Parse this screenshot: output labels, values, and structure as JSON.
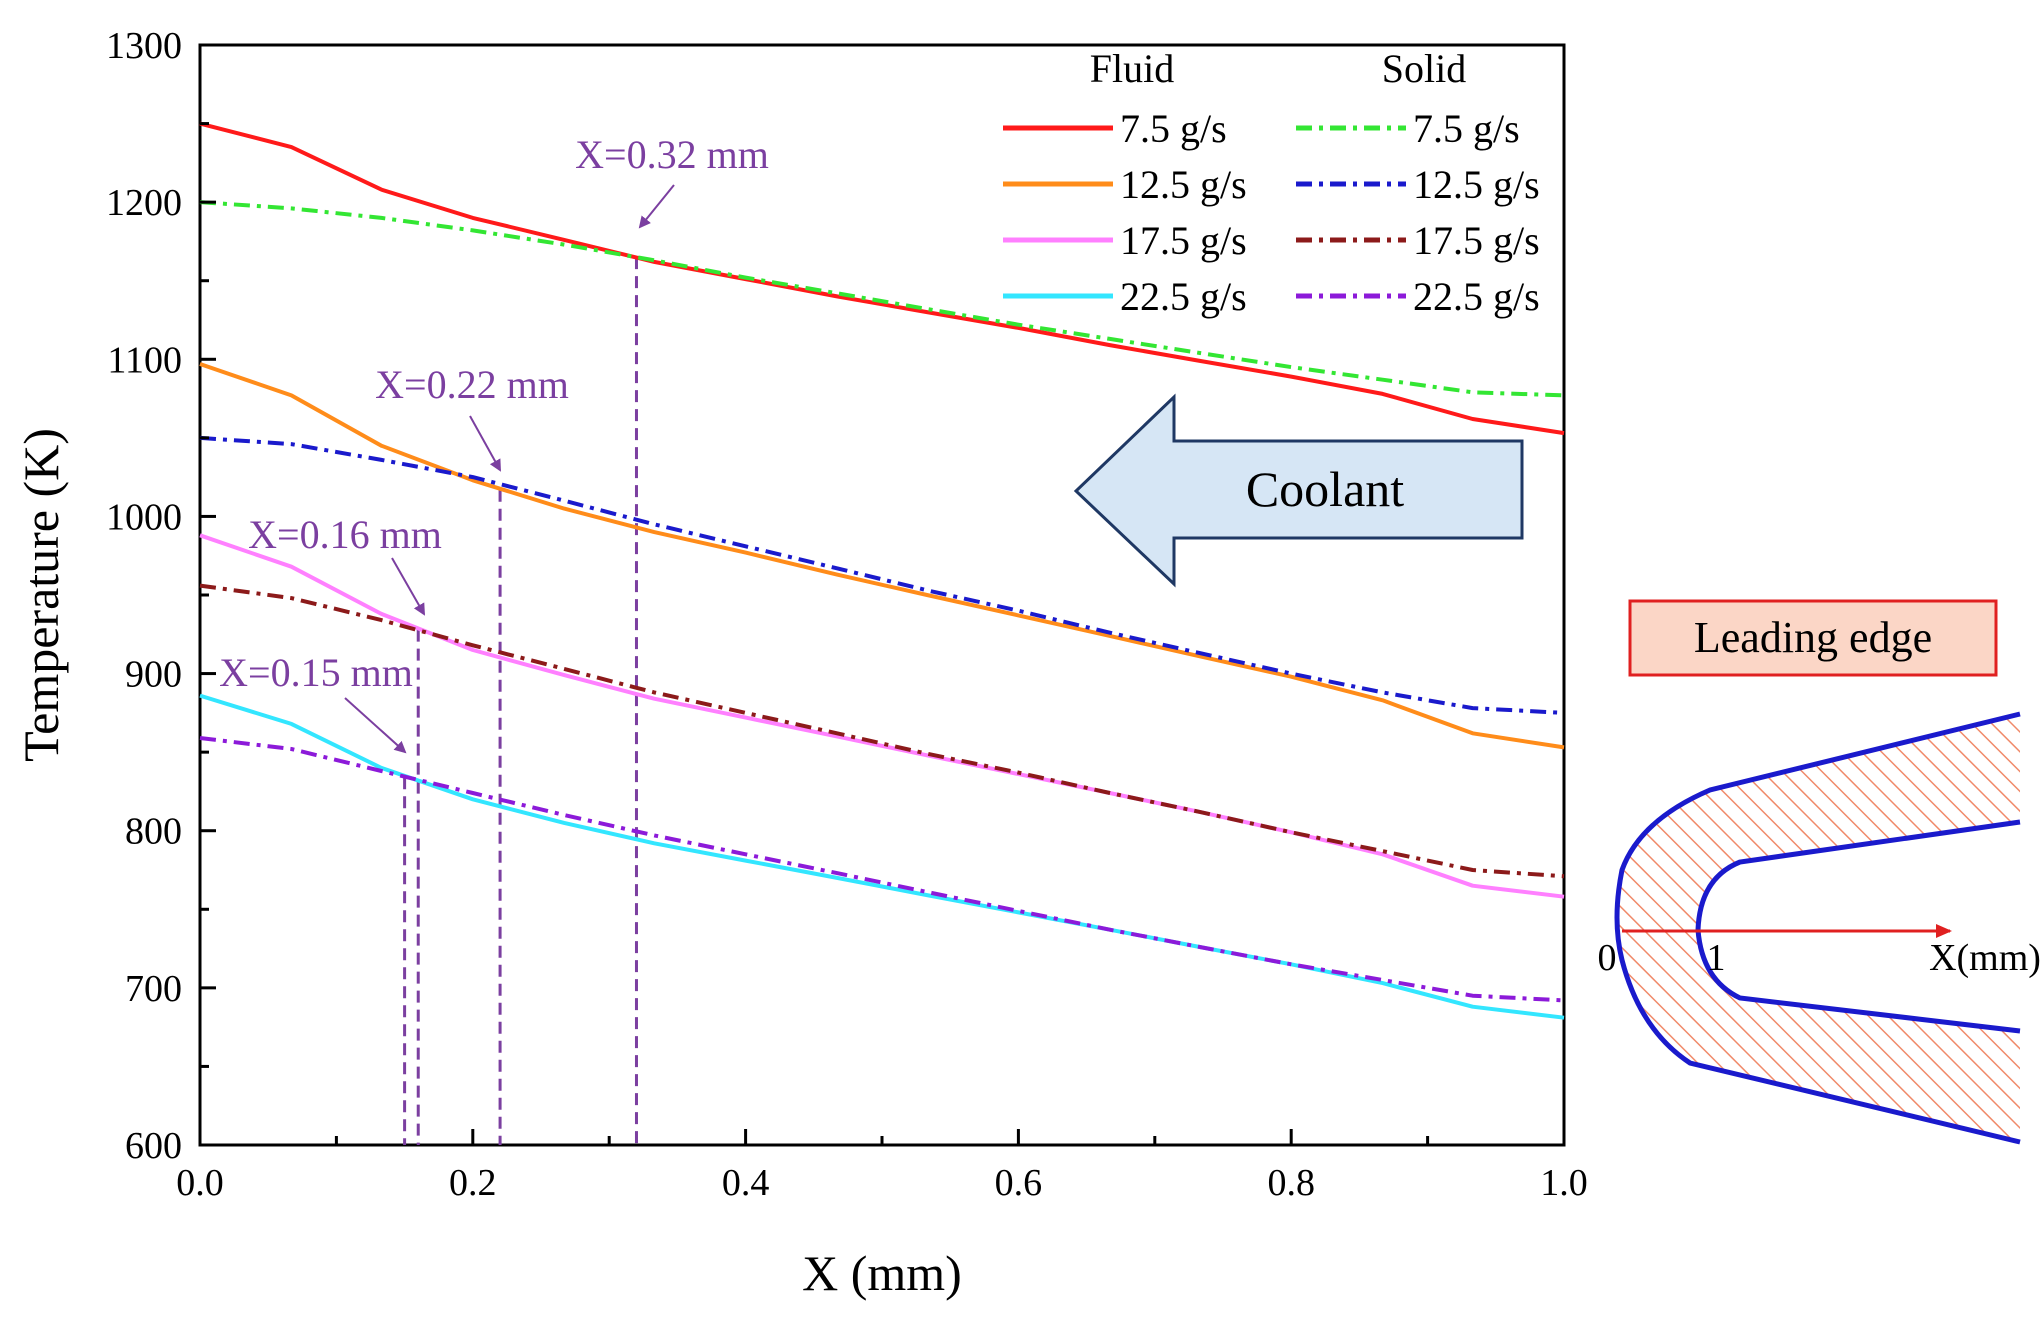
{
  "chart_data": {
    "type": "line",
    "xlabel": "X (mm)",
    "ylabel": "Temperature (K)",
    "xlim": [
      0.0,
      1.0
    ],
    "ylim": [
      600,
      1300
    ],
    "x_ticks": [
      "0.0",
      "0.2",
      "0.4",
      "0.6",
      "0.8",
      "1.0"
    ],
    "y_ticks": [
      "600",
      "700",
      "800",
      "900",
      "1000",
      "1100",
      "1200",
      "1300"
    ],
    "legend": {
      "position": "top-right",
      "col_titles": [
        "Fluid",
        "Solid"
      ]
    },
    "series": [
      {
        "name": "7.5 g/s",
        "group": "Fluid",
        "style": "solid",
        "color": "#ff1a1a",
        "x": [
          0,
          0.067,
          0.133,
          0.2,
          0.267,
          0.333,
          0.4,
          0.467,
          0.533,
          0.6,
          0.667,
          0.733,
          0.8,
          0.867,
          0.933,
          1.0
        ],
        "y": [
          1250,
          1235,
          1208,
          1190,
          1176,
          1162,
          1151,
          1140,
          1130,
          1120,
          1109,
          1099,
          1089,
          1078,
          1062,
          1053
        ]
      },
      {
        "name": "12.5 g/s",
        "group": "Fluid",
        "style": "solid",
        "color": "#ff8c1a",
        "x": [
          0,
          0.067,
          0.133,
          0.2,
          0.267,
          0.333,
          0.4,
          0.467,
          0.533,
          0.6,
          0.667,
          0.733,
          0.8,
          0.867,
          0.933,
          1.0
        ],
        "y": [
          1097,
          1077,
          1045,
          1023,
          1005,
          990,
          977,
          963,
          950,
          937,
          924,
          911,
          898,
          883,
          862,
          853
        ]
      },
      {
        "name": "17.5 g/s",
        "group": "Fluid",
        "style": "solid",
        "color": "#ff80ff",
        "x": [
          0,
          0.067,
          0.133,
          0.2,
          0.267,
          0.333,
          0.4,
          0.467,
          0.533,
          0.6,
          0.667,
          0.733,
          0.8,
          0.867,
          0.933,
          1.0
        ],
        "y": [
          988,
          968,
          938,
          915,
          899,
          884,
          872,
          860,
          848,
          836,
          824,
          812,
          799,
          785,
          765,
          758
        ]
      },
      {
        "name": "22.5 g/s",
        "group": "Fluid",
        "style": "solid",
        "color": "#33e6ff",
        "x": [
          0,
          0.067,
          0.133,
          0.2,
          0.267,
          0.333,
          0.4,
          0.467,
          0.533,
          0.6,
          0.667,
          0.733,
          0.8,
          0.867,
          0.933,
          1.0
        ],
        "y": [
          886,
          868,
          840,
          820,
          805,
          792,
          781,
          770,
          759,
          748,
          737,
          726,
          715,
          703,
          688,
          681
        ]
      },
      {
        "name": "7.5 g/s",
        "group": "Solid",
        "style": "dashdot",
        "color": "#33e633",
        "x": [
          0,
          0.067,
          0.133,
          0.2,
          0.267,
          0.333,
          0.4,
          0.467,
          0.533,
          0.6,
          0.667,
          0.733,
          0.8,
          0.867,
          0.933,
          1.0
        ],
        "y": [
          1200,
          1196,
          1190,
          1182,
          1173,
          1163,
          1152,
          1142,
          1132,
          1122,
          1113,
          1104,
          1095,
          1087,
          1079,
          1077
        ]
      },
      {
        "name": "12.5 g/s",
        "group": "Solid",
        "style": "dashdot",
        "color": "#1a1acc",
        "x": [
          0,
          0.067,
          0.133,
          0.2,
          0.267,
          0.333,
          0.4,
          0.467,
          0.533,
          0.6,
          0.667,
          0.733,
          0.8,
          0.867,
          0.933,
          1.0
        ],
        "y": [
          1050,
          1046,
          1036,
          1025,
          1010,
          995,
          981,
          967,
          953,
          940,
          926,
          913,
          900,
          888,
          878,
          875
        ]
      },
      {
        "name": "17.5 g/s",
        "group": "Solid",
        "style": "dashdot",
        "color": "#8c1a1a",
        "x": [
          0,
          0.067,
          0.133,
          0.2,
          0.267,
          0.333,
          0.4,
          0.467,
          0.533,
          0.6,
          0.667,
          0.733,
          0.8,
          0.867,
          0.933,
          1.0
        ],
        "y": [
          956,
          948,
          934,
          918,
          903,
          888,
          875,
          862,
          849,
          837,
          824,
          812,
          799,
          787,
          775,
          771
        ]
      },
      {
        "name": "22.5 g/s",
        "group": "Solid",
        "style": "dashdot",
        "color": "#8c1ad9",
        "x": [
          0,
          0.067,
          0.133,
          0.2,
          0.267,
          0.333,
          0.4,
          0.467,
          0.533,
          0.6,
          0.667,
          0.733,
          0.8,
          0.867,
          0.933,
          1.0
        ],
        "y": [
          859,
          852,
          838,
          824,
          810,
          797,
          785,
          773,
          761,
          749,
          737,
          726,
          715,
          705,
          695,
          692
        ]
      }
    ],
    "intersections": [
      {
        "label": "X=0.32 mm",
        "x": 0.32,
        "y": 1165
      },
      {
        "label": "X=0.22 mm",
        "x": 0.22,
        "y": 1017
      },
      {
        "label": "X=0.16 mm",
        "x": 0.16,
        "y": 928
      },
      {
        "label": "X=0.15 mm",
        "x": 0.15,
        "y": 834
      }
    ],
    "annotation_color": "#7b3fa0",
    "coolant_arrow": {
      "label": "Coolant",
      "fill": "#d6e6f5",
      "stroke": "#1f3864"
    },
    "inset": {
      "title": "Leading edge",
      "title_fill": "#fbd6c6",
      "title_border": "#e02020",
      "origin_label": "0",
      "tick_label": "1",
      "axis_label": "X(mm)",
      "wall_color": "#1a1acc",
      "hatch_color": "#f08a6a",
      "axis_color": "#e02020"
    }
  }
}
